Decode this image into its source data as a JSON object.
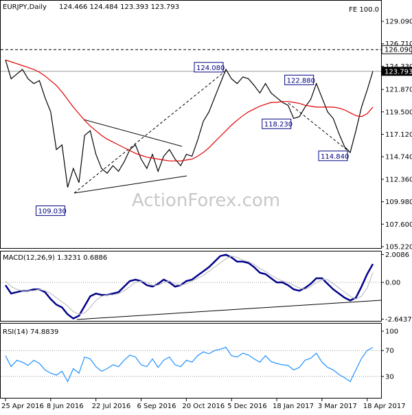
{
  "chart_data": [
    {
      "type": "line",
      "title": "EURJPY,Daily",
      "subtitle": "124.466 124.484 123.393 123.793",
      "label": "FE 100.0",
      "watermark": "ActionForex.com",
      "categories": [
        "25 Apr 2016",
        null,
        null,
        null,
        null,
        null,
        null,
        null,
        "8 Jun 2016",
        null,
        null,
        null,
        null,
        null,
        null,
        null,
        "22 Jul 2016",
        null,
        null,
        null,
        null,
        null,
        null,
        null,
        "6 Sep 2016",
        null,
        null,
        null,
        null,
        null,
        null,
        null,
        "20 Oct 2016",
        null,
        null,
        null,
        null,
        null,
        null,
        null,
        "5 Dec 2016",
        null,
        null,
        null,
        null,
        null,
        null,
        null,
        "18 Jan 2017",
        null,
        null,
        null,
        null,
        null,
        null,
        null,
        "3 Mar 2017",
        null,
        null,
        null,
        null,
        null,
        null,
        null,
        "18 Apr 2017",
        null
      ],
      "series": [
        {
          "color": "#000000",
          "values": [
            125,
            123,
            123.5,
            124,
            123,
            122.5,
            122.8,
            121,
            119.5,
            115.5,
            116,
            111.5,
            113.5,
            112,
            117,
            117.5,
            115,
            113.5,
            113,
            113.8,
            113.2,
            114.2,
            115.5,
            116,
            114.5,
            113.5,
            115,
            113.2,
            114.8,
            115.5,
            114.5,
            113.8,
            115,
            114.8,
            116.5,
            118.5,
            119.5,
            121,
            122.5,
            124,
            123,
            122.5,
            123.2,
            123,
            122.3,
            121.5,
            122.5,
            121.5,
            121,
            120.5,
            120.2,
            118.8,
            119,
            120,
            120.8,
            122.5,
            121,
            119.5,
            118.8,
            117.2,
            115.8,
            115.2,
            117.5,
            120,
            121.8,
            123.8
          ]
        },
        {
          "color": "#e00000",
          "values": [
            125,
            124.8,
            124.6,
            124.4,
            124.2,
            124,
            123.7,
            123.3,
            122.8,
            122.3,
            121.6,
            120.8,
            120,
            119.3,
            118.6,
            118,
            117.5,
            117,
            116.6,
            116.3,
            116,
            115.7,
            115.4,
            115.1,
            114.9,
            114.7,
            114.6,
            114.5,
            114.4,
            114.3,
            114.3,
            114.3,
            114.4,
            114.5,
            114.8,
            115.2,
            115.7,
            116.3,
            116.9,
            117.5,
            118.1,
            118.6,
            119.1,
            119.5,
            119.8,
            120.1,
            120.3,
            120.5,
            120.5,
            120.6,
            120.6,
            120.5,
            120.4,
            120.2,
            120.1,
            120,
            120,
            120,
            120,
            119.9,
            119.7,
            119.4,
            119.1,
            119,
            119.3,
            120
          ]
        }
      ],
      "ylim": [
        105.0,
        130.62
      ],
      "yticks": [
        {
          "value": 129.09,
          "label": "129.090"
        },
        {
          "value": 126.71,
          "label": "126.710"
        },
        {
          "value": 124.33,
          "label": "124.330"
        },
        {
          "value": 121.87,
          "label": "121.870"
        },
        {
          "value": 119.5,
          "label": "119.500"
        },
        {
          "value": 117.12,
          "label": "117.120"
        },
        {
          "value": 114.74,
          "label": "114.740"
        },
        {
          "value": 112.36,
          "label": "112.360"
        },
        {
          "value": 109.98,
          "label": "109.980"
        },
        {
          "value": 107.6,
          "label": "107.600"
        },
        {
          "value": 105.22,
          "label": "105.220"
        }
      ],
      "reference_lines": [
        {
          "value": 126.09,
          "label": "126.090"
        },
        {
          "value": 123.793,
          "label": "123.793"
        }
      ],
      "annotations": [
        {
          "value": 124.08,
          "label": "124.080"
        },
        {
          "value": 122.88,
          "label": "122.880"
        },
        {
          "value": 118.23,
          "label": "118.230"
        },
        {
          "value": 114.84,
          "label": "114.840"
        },
        {
          "value": 109.03,
          "label": "109.030"
        }
      ]
    },
    {
      "type": "line",
      "title": "MACD(12,26,9) 1.3231 0.6886",
      "series": [
        {
          "color": "#00008b",
          "values": [
            -0.2,
            -0.8,
            -0.7,
            -0.6,
            -0.6,
            -0.5,
            -0.5,
            -0.7,
            -1.2,
            -1.6,
            -1.8,
            -2.3,
            -2.6,
            -2.4,
            -1.7,
            -1.0,
            -0.8,
            -0.9,
            -0.9,
            -0.8,
            -0.7,
            -0.3,
            0.1,
            0.2,
            0.1,
            -0.2,
            -0.3,
            -0.1,
            0.2,
            0.0,
            -0.3,
            -0.2,
            0.1,
            0.2,
            0.5,
            0.8,
            1.1,
            1.5,
            1.9,
            2.0,
            1.8,
            1.5,
            1.5,
            1.4,
            1.1,
            0.7,
            0.6,
            0.3,
            0.0,
            0.0,
            -0.2,
            -0.5,
            -0.6,
            -0.4,
            -0.1,
            0.3,
            0.3,
            -0.1,
            -0.5,
            -0.8,
            -1.1,
            -1.3,
            -1.1,
            -0.3,
            0.6,
            1.3231
          ]
        },
        {
          "color": "#c0c0c0",
          "values": [
            0.1,
            -0.3,
            -0.5,
            -0.6,
            -0.6,
            -0.6,
            -0.5,
            -0.6,
            -0.8,
            -1.1,
            -1.4,
            -1.7,
            -2.1,
            -2.3,
            -2.2,
            -1.8,
            -1.3,
            -1.0,
            -0.9,
            -0.9,
            -0.8,
            -0.6,
            -0.3,
            0.0,
            0.1,
            0.0,
            -0.2,
            -0.2,
            0.0,
            0.1,
            -0.1,
            -0.2,
            -0.1,
            0.1,
            0.3,
            0.5,
            0.8,
            1.1,
            1.4,
            1.7,
            1.9,
            1.8,
            1.6,
            1.5,
            1.3,
            1.0,
            0.8,
            0.5,
            0.3,
            0.1,
            0.0,
            -0.2,
            -0.4,
            -0.5,
            -0.3,
            0.0,
            0.2,
            0.2,
            -0.1,
            -0.4,
            -0.7,
            -1.0,
            -1.2,
            -1.0,
            -0.4,
            0.6886
          ]
        }
      ],
      "ylim": [
        -2.82,
        2.28
      ],
      "yticks": [
        2.0086,
        {
          "value": 0,
          "label": "0.00"
        },
        -2.6437
      ]
    },
    {
      "type": "line",
      "title": "RSI(14) 74.8839",
      "series": [
        {
          "color": "#1e90ff",
          "values": [
            62,
            45,
            55,
            52,
            47,
            55,
            50,
            40,
            35,
            32,
            38,
            22,
            42,
            35,
            60,
            57,
            45,
            38,
            42,
            48,
            45,
            55,
            63,
            60,
            48,
            45,
            57,
            44,
            55,
            60,
            48,
            45,
            55,
            52,
            62,
            68,
            65,
            70,
            72,
            75,
            62,
            60,
            66,
            63,
            57,
            52,
            62,
            53,
            50,
            48,
            47,
            40,
            44,
            55,
            58,
            66,
            52,
            44,
            40,
            33,
            28,
            22,
            40,
            58,
            70,
            74.8839
          ]
        }
      ],
      "ylim": [
        -4.2,
        110.6
      ],
      "yticks": [
        100,
        70,
        30
      ]
    }
  ]
}
